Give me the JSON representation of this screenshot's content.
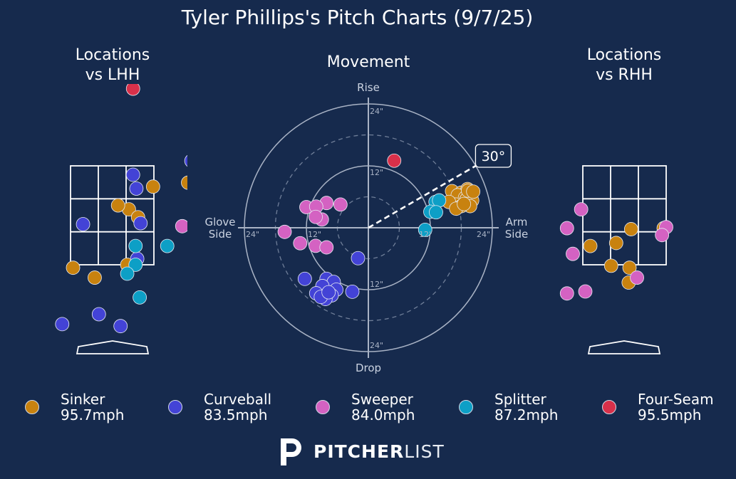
{
  "title": "Tyler Phillips's Pitch Charts (9/7/25)",
  "panels": {
    "lhh": "Locations\nvs LHH",
    "movement": "Movement",
    "rhh": "Locations\nvs RHH"
  },
  "movement_axes": {
    "top": "Rise",
    "bottom": "Drop",
    "left": "Glove\nSide",
    "right": "Arm\nSide",
    "ring_labels": [
      "12\"",
      "24\""
    ],
    "arm_angle_label": "30°",
    "arm_angle_deg": 30
  },
  "legend": [
    {
      "name": "Sinker",
      "velo": "95.7mph",
      "color": "#c8820f"
    },
    {
      "name": "Curveball",
      "velo": "83.5mph",
      "color": "#4343d6"
    },
    {
      "name": "Sweeper",
      "velo": "84.0mph",
      "color": "#d462c2"
    },
    {
      "name": "Splitter",
      "velo": "87.2mph",
      "color": "#0d9fc6"
    },
    {
      "name": "Four-Seam",
      "velo": "95.5mph",
      "color": "#d8304a"
    }
  ],
  "logo": {
    "bold": "PITCHER",
    "light": "LIST"
  },
  "chart_data": [
    {
      "type": "scatter",
      "title": "Locations vs LHH",
      "xlabel": "",
      "ylabel": "",
      "note": "x = plate side (zone widths, 0 = center), y = height (zone units, 0 = bottom of zone, 1 = top of zone)",
      "series": [
        {
          "name": "Sinker",
          "points": [
            [
              0.49,
              0.79
            ],
            [
              0.2,
              0.56
            ],
            [
              0.07,
              0.6
            ],
            [
              0.31,
              0.48
            ],
            [
              -0.47,
              -0.03
            ],
            [
              -0.21,
              -0.13
            ],
            [
              0.18,
              0.0
            ],
            [
              0.91,
              0.83
            ]
          ]
        },
        {
          "name": "Curveball",
          "points": [
            [
              0.25,
              0.91
            ],
            [
              0.29,
              0.77
            ],
            [
              0.34,
              0.42
            ],
            [
              -0.35,
              0.41
            ],
            [
              0.3,
              0.06
            ],
            [
              -0.16,
              -0.5
            ],
            [
              0.1,
              -0.62
            ],
            [
              -0.6,
              -0.6
            ],
            [
              0.95,
              1.05
            ]
          ]
        },
        {
          "name": "Sweeper",
          "points": [
            [
              0.84,
              0.39
            ]
          ]
        },
        {
          "name": "Splitter",
          "points": [
            [
              0.28,
              0.19
            ],
            [
              0.66,
              0.19
            ],
            [
              0.28,
              0.0
            ],
            [
              0.18,
              -0.09
            ],
            [
              0.33,
              -0.33
            ]
          ]
        },
        {
          "name": "Four-Seam",
          "points": [
            [
              0.25,
              1.78
            ]
          ]
        }
      ]
    },
    {
      "type": "scatter",
      "title": "Movement",
      "xlabel": "Glove Side / Arm Side (in)",
      "ylabel": "Drop / Rise (in)",
      "xlim": [
        -24,
        24
      ],
      "ylim": [
        -24,
        24
      ],
      "series": [
        {
          "name": "Sinker",
          "points": [
            [
              16.2,
              7.1
            ],
            [
              18.0,
              6.8
            ],
            [
              19.2,
              7.5
            ],
            [
              17.3,
              6.3
            ],
            [
              18.7,
              5.8
            ],
            [
              16.9,
              4.5
            ],
            [
              19.0,
              5.5
            ],
            [
              15.6,
              5.0
            ],
            [
              20.1,
              5.3
            ],
            [
              19.7,
              4.2
            ],
            [
              18.0,
              4.2
            ],
            [
              17.0,
              3.7
            ],
            [
              18.5,
              4.6
            ],
            [
              19.3,
              7.2
            ],
            [
              20.3,
              7.0
            ]
          ]
        },
        {
          "name": "Curveball",
          "points": [
            [
              -2.0,
              -5.9
            ],
            [
              -12.3,
              -9.9
            ],
            [
              -8.1,
              -9.9
            ],
            [
              -6.7,
              -10.5
            ],
            [
              -3.1,
              -12.4
            ],
            [
              -6.2,
              -12.0
            ],
            [
              -8.9,
              -11.3
            ],
            [
              -10.1,
              -12.7
            ],
            [
              -7.1,
              -13.1
            ],
            [
              -8.3,
              -13.8
            ],
            [
              -9.2,
              -13.4
            ],
            [
              -7.7,
              -12.5
            ]
          ]
        },
        {
          "name": "Sweeper",
          "points": [
            [
              -8.1,
              4.8
            ],
            [
              -5.4,
              4.5
            ],
            [
              -12.0,
              4.0
            ],
            [
              -10.1,
              4.1
            ],
            [
              -9.0,
              1.6
            ],
            [
              -10.2,
              2.1
            ],
            [
              -16.2,
              -0.8
            ],
            [
              -13.2,
              -3.0
            ],
            [
              -10.2,
              -3.5
            ],
            [
              -8.1,
              -3.8
            ]
          ]
        },
        {
          "name": "Splitter",
          "points": [
            [
              13.0,
              5.0
            ],
            [
              13.7,
              5.3
            ],
            [
              12.0,
              3.1
            ],
            [
              13.1,
              3.0
            ],
            [
              11.0,
              -0.4
            ]
          ]
        },
        {
          "name": "Four-Seam",
          "points": [
            [
              5.0,
              13.0
            ]
          ]
        }
      ]
    },
    {
      "type": "scatter",
      "title": "Locations vs RHH",
      "xlabel": "",
      "ylabel": "",
      "note": "x = plate side (zone widths, 0 = center), y = height (zone units, 0 = bottom of zone, 1 = top of zone)",
      "series": [
        {
          "name": "Sinker",
          "points": [
            [
              0.08,
              0.36
            ],
            [
              -0.1,
              0.22
            ],
            [
              -0.41,
              0.19
            ],
            [
              0.47,
              0.37
            ],
            [
              -0.16,
              -0.01
            ],
            [
              0.06,
              -0.03
            ],
            [
              0.05,
              -0.18
            ]
          ]
        },
        {
          "name": "Curveball",
          "points": []
        },
        {
          "name": "Sweeper",
          "points": [
            [
              -0.52,
              0.56
            ],
            [
              -0.69,
              0.37
            ],
            [
              -0.62,
              0.11
            ],
            [
              0.5,
              0.38
            ],
            [
              0.45,
              0.3
            ],
            [
              0.15,
              -0.13
            ],
            [
              -0.47,
              -0.27
            ],
            [
              -0.69,
              -0.29
            ]
          ]
        },
        {
          "name": "Splitter",
          "points": []
        },
        {
          "name": "Four-Seam",
          "points": []
        }
      ]
    }
  ]
}
